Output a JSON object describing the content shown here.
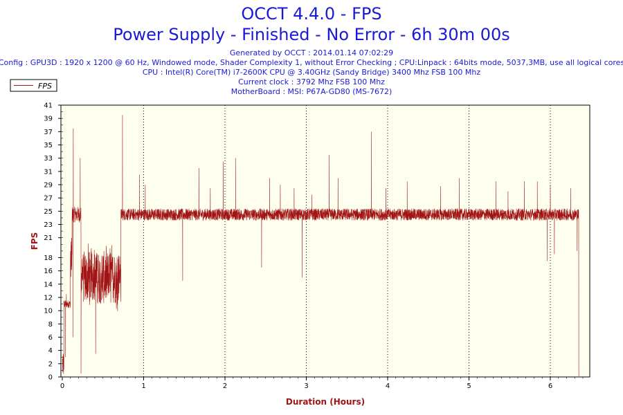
{
  "header": {
    "title": "OCCT 4.4.0 - FPS",
    "subtitle": "Power Supply - Finished - No Error - 6h 30m 00s",
    "info_lines": [
      "Generated by OCCT : 2014.01.14 07:02:29",
      "Config : GPU3D : 1920 x 1200 @ 60 Hz, Windowed mode, Shader Complexity 1, without Error Checking ; CPU:Linpack : 64bits mode, 5037,3MB, use all logical cores",
      "CPU : Intel(R) Core(TM) i7-2600K CPU @ 3.40GHz (Sandy Bridge) 3400 Mhz FSB 100 Mhz",
      "Current clock : 3792 Mhz FSB 100 Mhz",
      "MotherBoard : MSI: P67A-GD80 (MS-7672)"
    ]
  },
  "colors": {
    "title": "#1a1ad6",
    "series": "#a01414",
    "axis_label": "#a01414",
    "plot_background": "#fffff0"
  },
  "chart_data": {
    "type": "line",
    "xlabel": "Duration (Hours)",
    "ylabel": "FPS",
    "xlim": [
      0,
      6.5
    ],
    "ylim": [
      0,
      41
    ],
    "xticks": [
      0,
      1,
      2,
      3,
      4,
      5,
      6
    ],
    "yticks": [
      0,
      2,
      4,
      6,
      8,
      10,
      12,
      14,
      16,
      18,
      21,
      23,
      25,
      27,
      29,
      31,
      33,
      35,
      37,
      39,
      41
    ],
    "grid": "vertical dotted at major x ticks",
    "legend": {
      "position": "top-left"
    },
    "series": [
      {
        "name": "FPS",
        "phases": [
          {
            "from": 0.0,
            "to": 0.02,
            "base": 2,
            "noise": 2
          },
          {
            "from": 0.02,
            "to": 0.1,
            "base": 11,
            "noise": 0.6
          },
          {
            "from": 0.1,
            "to": 0.12,
            "base": 18,
            "noise": 3
          },
          {
            "from": 0.12,
            "to": 0.23,
            "base": 24.5,
            "noise": 1.2
          },
          {
            "from": 0.23,
            "to": 0.72,
            "base": 15,
            "noise": 4
          },
          {
            "from": 0.72,
            "to": 6.35,
            "base": 24.5,
            "noise": 0.9
          },
          {
            "from": 6.35,
            "to": 6.36,
            "base": 0,
            "noise": 0
          }
        ],
        "spikes": [
          [
            0.04,
            3
          ],
          [
            0.05,
            12.5
          ],
          [
            0.135,
            37.5
          ],
          [
            0.13,
            6
          ],
          [
            0.22,
            33
          ],
          [
            0.23,
            0.5
          ],
          [
            0.41,
            3.5
          ],
          [
            0.74,
            39.5
          ],
          [
            0.95,
            30.5
          ],
          [
            1.02,
            29
          ],
          [
            1.48,
            14.5
          ],
          [
            1.68,
            31.5
          ],
          [
            1.82,
            28.5
          ],
          [
            1.98,
            32.5
          ],
          [
            2.13,
            33
          ],
          [
            2.45,
            16.5
          ],
          [
            2.55,
            30
          ],
          [
            2.68,
            29
          ],
          [
            2.85,
            28.5
          ],
          [
            2.95,
            15
          ],
          [
            3.07,
            27.5
          ],
          [
            3.28,
            33.5
          ],
          [
            3.39,
            30
          ],
          [
            3.8,
            37
          ],
          [
            3.98,
            28.5
          ],
          [
            4.24,
            29.5
          ],
          [
            4.65,
            28.8
          ],
          [
            4.88,
            30
          ],
          [
            5.33,
            29.5
          ],
          [
            5.48,
            28
          ],
          [
            5.68,
            29.5
          ],
          [
            5.84,
            29.5
          ],
          [
            5.96,
            17.5
          ],
          [
            6.0,
            29
          ],
          [
            6.05,
            18.5
          ],
          [
            6.25,
            28.5
          ],
          [
            6.33,
            19
          ],
          [
            6.35,
            0
          ]
        ]
      }
    ]
  }
}
